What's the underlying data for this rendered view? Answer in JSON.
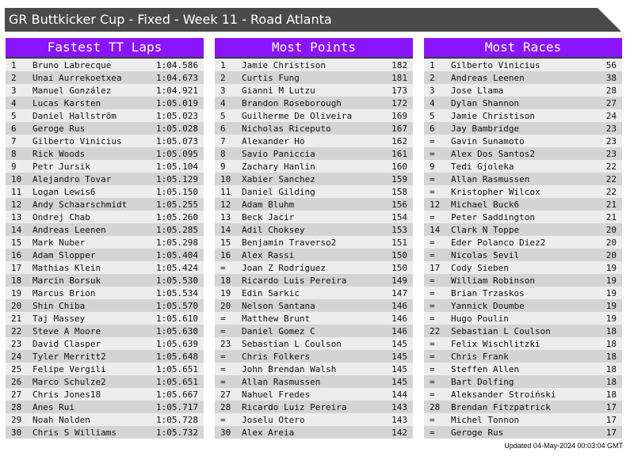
{
  "title": "GR Buttkicker Cup - Fixed - Week 11 - Road Atlanta",
  "colors": {
    "header": "#8a14fc",
    "titlebar": "#4a4a4a",
    "row_light": "#ededed",
    "row_dark": "#d4d4d4"
  },
  "panels": [
    {
      "title": "Fastest TT Laps",
      "rows": [
        [
          "1",
          "Bruno Labrecque",
          "1:04.586"
        ],
        [
          "2",
          "Unai Aurrekoetxea",
          "1:04.673"
        ],
        [
          "3",
          "Manuel González",
          "1:04.921"
        ],
        [
          "4",
          "Lucas Karsten",
          "1:05.019"
        ],
        [
          "5",
          "Daniel Hallström",
          "1:05.023"
        ],
        [
          "6",
          "Geroge Rus",
          "1:05.028"
        ],
        [
          "7",
          "Gilberto Vinicius",
          "1:05.073"
        ],
        [
          "8",
          "Rick Woods",
          "1:05.095"
        ],
        [
          "9",
          "Petr Jursik",
          "1:05.104"
        ],
        [
          "10",
          "Alejandro Tovar",
          "1:05.129"
        ],
        [
          "11",
          "Logan Lewis6",
          "1:05.150"
        ],
        [
          "12",
          "Andy Schaarschmidt",
          "1:05.255"
        ],
        [
          "13",
          "Ondrej Chab",
          "1:05.260"
        ],
        [
          "14",
          "Andreas Leenen",
          "1:05.285"
        ],
        [
          "15",
          "Mark Nuber",
          "1:05.298"
        ],
        [
          "16",
          "Adam Slopper",
          "1:05.404"
        ],
        [
          "17",
          "Mathias Klein",
          "1:05.424"
        ],
        [
          "18",
          "Marcin Borsuk",
          "1:05.530"
        ],
        [
          "19",
          "Marcus Brion",
          "1:05.534"
        ],
        [
          "20",
          "Shin Chiba",
          "1:05.570"
        ],
        [
          "21",
          "Taj Massey",
          "1:05.610"
        ],
        [
          "22",
          "Steve A Moore",
          "1:05.630"
        ],
        [
          "23",
          "David Clasper",
          "1:05.639"
        ],
        [
          "24",
          "Tyler Merritt2",
          "1:05.648"
        ],
        [
          "25",
          "Felipe Vergili",
          "1:05.651"
        ],
        [
          "26",
          "Marco Schulze2",
          "1:05.651"
        ],
        [
          "27",
          "Chris Jones18",
          "1:05.667"
        ],
        [
          "28",
          "Anes Rui",
          "1:05.717"
        ],
        [
          "29",
          "Noah Nolden",
          "1:05.728"
        ],
        [
          "30",
          "Chris S Williams",
          "1:05.732"
        ]
      ]
    },
    {
      "title": "Most Points",
      "rows": [
        [
          "1",
          "Jamie Christison",
          "182"
        ],
        [
          "2",
          "Curtis Fung",
          "181"
        ],
        [
          "3",
          "Gianni M Lutzu",
          "173"
        ],
        [
          "4",
          "Brandon Roseborough",
          "172"
        ],
        [
          "5",
          "Guilherme De Oliveira",
          "169"
        ],
        [
          "6",
          "Nicholas Riceputo",
          "167"
        ],
        [
          "7",
          "Alexander Ho",
          "162"
        ],
        [
          "8",
          "Savio Paniccia",
          "161"
        ],
        [
          "9",
          "Zachary Hanlin",
          "160"
        ],
        [
          "10",
          "Xabier Sanchez",
          "159"
        ],
        [
          "11",
          "Daniel Gilding",
          "158"
        ],
        [
          "12",
          "Adam Bluhm",
          "156"
        ],
        [
          "13",
          "Beck Jacir",
          "154"
        ],
        [
          "14",
          "Adil Choksey",
          "153"
        ],
        [
          "15",
          "Benjamin Traverso2",
          "151"
        ],
        [
          "16",
          "Alex Rassi",
          "150"
        ],
        [
          "=",
          "Joan Z Rodríguez",
          "150"
        ],
        [
          "18",
          "Ricardo Luis Pereira",
          "149"
        ],
        [
          "19",
          "Edin Sarkic",
          "147"
        ],
        [
          "20",
          "Nelson Santana",
          "146"
        ],
        [
          "=",
          "Matthew Brunt",
          "146"
        ],
        [
          "=",
          "Daniel Gomez C",
          "146"
        ],
        [
          "23",
          "Sebastian L Coulson",
          "145"
        ],
        [
          "=",
          "Chris Folkers",
          "145"
        ],
        [
          "=",
          "John Brendan Walsh",
          "145"
        ],
        [
          "=",
          "Allan Rasmussen",
          "145"
        ],
        [
          "27",
          "Nahuel Fredes",
          "144"
        ],
        [
          "28",
          "Ricardo Luiz Pereira",
          "143"
        ],
        [
          "=",
          "Joselu Otero",
          "143"
        ],
        [
          "30",
          "Alex Areia",
          "142"
        ]
      ]
    },
    {
      "title": "Most Races",
      "rows": [
        [
          "1",
          "Gilberto Vinicius",
          "56"
        ],
        [
          "2",
          "Andreas Leenen",
          "38"
        ],
        [
          "3",
          "Jose Llama",
          "28"
        ],
        [
          "4",
          "Dylan Shannon",
          "27"
        ],
        [
          "5",
          "Jamie Christison",
          "24"
        ],
        [
          "6",
          "Jay Bambridge",
          "23"
        ],
        [
          "=",
          "Gavin Sunamoto",
          "23"
        ],
        [
          "=",
          "Alex Dos Santos2",
          "23"
        ],
        [
          "9",
          "Tedi Gjoleka",
          "22"
        ],
        [
          "=",
          "Allan Rasmussen",
          "22"
        ],
        [
          "=",
          "Kristopher Wilcox",
          "22"
        ],
        [
          "12",
          "Michael Buck6",
          "21"
        ],
        [
          "=",
          "Peter Saddington",
          "21"
        ],
        [
          "14",
          "Clark N Toppe",
          "20"
        ],
        [
          "=",
          "Eder Polanco Diez2",
          "20"
        ],
        [
          "=",
          "Nicolas Sevil",
          "20"
        ],
        [
          "17",
          "Cody Sieben",
          "19"
        ],
        [
          "=",
          "William Robinson",
          "19"
        ],
        [
          "=",
          "Brian Trzaskos",
          "19"
        ],
        [
          "=",
          "Yannick Doumbe",
          "19"
        ],
        [
          "=",
          "Hugo Poulin",
          "19"
        ],
        [
          "22",
          "Sebastian L Coulson",
          "18"
        ],
        [
          "=",
          "Felix Wischlitzki",
          "18"
        ],
        [
          "=",
          "Chris Frank",
          "18"
        ],
        [
          "=",
          "Steffen Allen",
          "18"
        ],
        [
          "=",
          "Bart Dolfing",
          "18"
        ],
        [
          "=",
          "Aleksander Stroiński",
          "18"
        ],
        [
          "28",
          "Brendan Fitzpatrick",
          "17"
        ],
        [
          "=",
          "Michel Tonnon",
          "17"
        ],
        [
          "=",
          "Geroge Rus",
          "17"
        ]
      ]
    }
  ],
  "footer": "Updated 04-May-2024 00:03:04 GMT"
}
